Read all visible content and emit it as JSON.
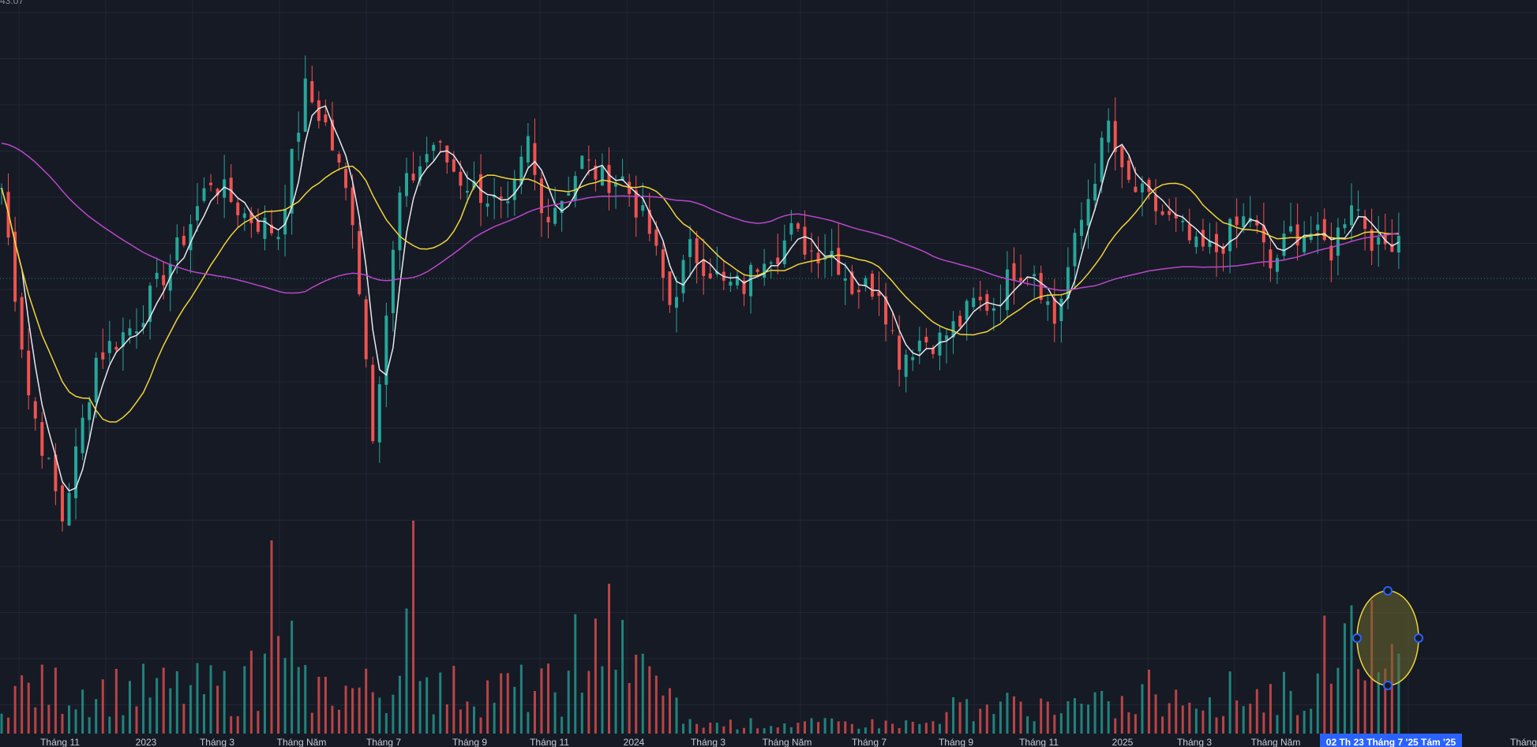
{
  "header": {
    "top_value": "43.07"
  },
  "colors": {
    "background": "#161a25",
    "grid": "#232735",
    "up": "#26a69a",
    "down": "#ef5350",
    "ma_short": "#e8e8ee",
    "ma_mid": "#f2d43b",
    "ma_long": "#b848c9",
    "highlight_ellipse_stroke": "#f2d43b",
    "highlight_ellipse_fill": "#6b6a2e",
    "handle": "#2962ff",
    "axis_highlight_bg": "#2962ff"
  },
  "x_axis": {
    "labels": [
      "Tháng 11",
      "2023",
      "Tháng 3",
      "Tháng Năm",
      "Tháng 7",
      "Tháng 9",
      "Tháng 11",
      "2024",
      "Tháng 3",
      "Tháng Năm",
      "Tháng 7",
      "Tháng 9",
      "Tháng 11",
      "2025",
      "Tháng 3",
      "Tháng Năm",
      "Tháng"
    ],
    "highlight_label": "02 Th  23 Tháng 7 '25  Tám '25"
  },
  "chart_data": {
    "type": "candlestick",
    "indicators": [
      "MA short (white)",
      "MA mid (yellow)",
      "MA long (purple)",
      "Volume"
    ],
    "price_path": [
      [
        0,
        38.5
      ],
      [
        4,
        27
      ],
      [
        9,
        20
      ],
      [
        14,
        29
      ],
      [
        20,
        31
      ],
      [
        26,
        35
      ],
      [
        31,
        39
      ],
      [
        36,
        37
      ],
      [
        41,
        36
      ],
      [
        45,
        44
      ],
      [
        48,
        42
      ],
      [
        52,
        37
      ],
      [
        55,
        25
      ],
      [
        59,
        38
      ],
      [
        64,
        41
      ],
      [
        68,
        39
      ],
      [
        72,
        38
      ],
      [
        75,
        37
      ],
      [
        78,
        41
      ],
      [
        80,
        37
      ],
      [
        83,
        38
      ],
      [
        86,
        40
      ],
      [
        89,
        39
      ],
      [
        92,
        39
      ],
      [
        96,
        36
      ],
      [
        99,
        32
      ],
      [
        102,
        35
      ],
      [
        105,
        34
      ],
      [
        107,
        33
      ],
      [
        110,
        33
      ],
      [
        113,
        35
      ],
      [
        115,
        35
      ],
      [
        117,
        36
      ],
      [
        120,
        35
      ],
      [
        123,
        35
      ],
      [
        126,
        33
      ],
      [
        130,
        33
      ],
      [
        133,
        29
      ],
      [
        136,
        30
      ],
      [
        139,
        30
      ],
      [
        142,
        31
      ],
      [
        144,
        32
      ],
      [
        147,
        32
      ],
      [
        150,
        34
      ],
      [
        153,
        34
      ],
      [
        156,
        31
      ],
      [
        158,
        34
      ],
      [
        161,
        38
      ],
      [
        164,
        42
      ],
      [
        166,
        39
      ],
      [
        169,
        38
      ],
      [
        172,
        37
      ],
      [
        175,
        36
      ],
      [
        177,
        35
      ],
      [
        180,
        35
      ],
      [
        182,
        36
      ],
      [
        185,
        37
      ],
      [
        188,
        34
      ],
      [
        191,
        36
      ],
      [
        194,
        36
      ],
      [
        197,
        35
      ],
      [
        200,
        38
      ],
      [
        204,
        35
      ],
      [
        207,
        36
      ]
    ],
    "ylim": [
      8,
      49
    ],
    "highlighted_range": [
      "02 Th",
      "Tám '25"
    ]
  }
}
